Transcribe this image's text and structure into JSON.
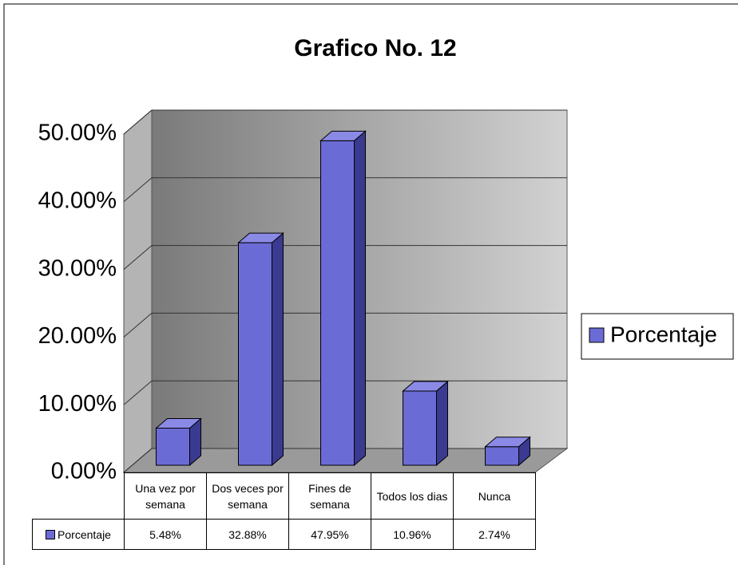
{
  "chart_data": {
    "type": "bar3d",
    "title": "Grafico No. 12",
    "categories": [
      "Una vez por semana",
      "Dos veces por semana",
      "Fines de semana",
      "Todos los dias",
      "Nunca"
    ],
    "series": [
      {
        "name": "Porcentaje",
        "color": "#6b6bd6",
        "values": [
          5.48,
          32.88,
          47.95,
          10.96,
          2.74
        ],
        "value_labels": [
          "5.48%",
          "32.88%",
          "47.95%",
          "10.96%",
          "2.74%"
        ]
      }
    ],
    "ylim": [
      0,
      50
    ],
    "yticks": [
      {
        "value": 0,
        "label": "0.00%"
      },
      {
        "value": 10,
        "label": "10.00%"
      },
      {
        "value": 20,
        "label": "20.00%"
      },
      {
        "value": 30,
        "label": "30.00%"
      },
      {
        "value": 40,
        "label": "40.00%"
      },
      {
        "value": 50,
        "label": "50.00%"
      }
    ],
    "grid": true,
    "legend": "right",
    "data_table": true
  }
}
